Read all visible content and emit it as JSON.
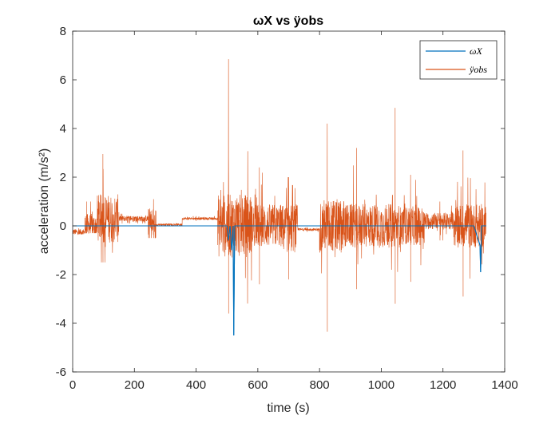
{
  "chart_data": {
    "type": "line",
    "title": "ωX vs ÿobs",
    "xlabel": "time (s)",
    "ylabel": "acceleration (m/s²)",
    "xlim": [
      0,
      1400
    ],
    "ylim": [
      -6,
      8
    ],
    "x_ticks": [
      0,
      200,
      400,
      600,
      800,
      1000,
      1200,
      1400
    ],
    "y_ticks": [
      -6,
      -4,
      -2,
      0,
      2,
      4,
      6,
      8
    ],
    "x_tick_labels": [
      "0",
      "200",
      "400",
      "600",
      "800",
      "1000",
      "1200",
      "1400"
    ],
    "y_tick_labels": [
      "-6",
      "-4",
      "-2",
      "0",
      "2",
      "4",
      "6",
      "8"
    ],
    "grid": false,
    "legend_position": "top-right",
    "series": [
      {
        "name": "ωX",
        "color": "#0072BD",
        "x": [
          0,
          480,
          500,
          505,
          510,
          515,
          520,
          522,
          525,
          530,
          600,
          700,
          800,
          900,
          1000,
          1100,
          1200,
          1300,
          1320,
          1322,
          1325,
          1340
        ],
        "y": [
          0,
          0,
          0,
          -0.6,
          0,
          -1.0,
          0,
          -4.5,
          0,
          0,
          0,
          0,
          0,
          0,
          0,
          0,
          0,
          0,
          -0.8,
          -1.9,
          0,
          0
        ]
      },
      {
        "name": "ÿobs",
        "color": "#D95319",
        "segments": [
          {
            "x0": 0,
            "x1": 40,
            "base": -0.25,
            "amp": 0.12,
            "peak_x": 20,
            "peak_max": -0.1,
            "peak_min": -0.35
          },
          {
            "x0": 40,
            "x1": 80,
            "base": 0.0,
            "amp": 0.5,
            "peak_x": 45,
            "peak_max": 1.0,
            "peak_min": -0.3
          },
          {
            "x0": 80,
            "x1": 150,
            "base": 0.3,
            "amp": 1.0,
            "peak_x": 98,
            "peak_max": 2.95,
            "peak_min": -1.5
          },
          {
            "x0": 150,
            "x1": 245,
            "base": 0.3,
            "amp": 0.12,
            "peak_x": 160,
            "peak_max": 0.5,
            "peak_min": 0.1
          },
          {
            "x0": 245,
            "x1": 270,
            "base": 0.05,
            "amp": 0.7,
            "peak_x": 262,
            "peak_max": 1.1,
            "peak_min": -0.5
          },
          {
            "x0": 270,
            "x1": 355,
            "base": 0.05,
            "amp": 0.05,
            "peak_x": 300,
            "peak_max": 0.1,
            "peak_min": 0.0
          },
          {
            "x0": 355,
            "x1": 470,
            "base": 0.3,
            "amp": 0.05,
            "peak_x": 400,
            "peak_max": 0.4,
            "peak_min": 0.2
          },
          {
            "x0": 470,
            "x1": 580,
            "base": 0.0,
            "amp": 1.3,
            "peak_x": 505,
            "peak_max": 6.85,
            "peak_min": -3.6
          },
          {
            "x0": 580,
            "x1": 680,
            "base": 0.0,
            "amp": 0.9,
            "peak_x": 605,
            "peak_max": 2.4,
            "peak_min": -2.4
          },
          {
            "x0": 680,
            "x1": 730,
            "base": -0.1,
            "amp": 1.0,
            "peak_x": 700,
            "peak_max": 2.0,
            "peak_min": -2.2
          },
          {
            "x0": 730,
            "x1": 800,
            "base": -0.15,
            "amp": 0.05,
            "peak_x": 760,
            "peak_max": -0.05,
            "peak_min": -0.25
          },
          {
            "x0": 800,
            "x1": 880,
            "base": 0.0,
            "amp": 1.1,
            "peak_x": 825,
            "peak_max": 4.2,
            "peak_min": -4.35
          },
          {
            "x0": 880,
            "x1": 960,
            "base": 0.0,
            "amp": 0.9,
            "peak_x": 920,
            "peak_max": 3.2,
            "peak_min": -2.6
          },
          {
            "x0": 960,
            "x1": 1060,
            "base": 0.0,
            "amp": 0.9,
            "peak_x": 1045,
            "peak_max": 4.85,
            "peak_min": -3.2
          },
          {
            "x0": 1060,
            "x1": 1140,
            "base": 0.0,
            "amp": 0.8,
            "peak_x": 1095,
            "peak_max": 2.1,
            "peak_min": -2.3
          },
          {
            "x0": 1140,
            "x1": 1235,
            "base": 0.2,
            "amp": 0.35,
            "peak_x": 1190,
            "peak_max": 1.0,
            "peak_min": -0.6
          },
          {
            "x0": 1235,
            "x1": 1340,
            "base": 0.0,
            "amp": 0.9,
            "peak_x": 1265,
            "peak_max": 3.1,
            "peak_min": -2.9
          }
        ]
      }
    ]
  }
}
